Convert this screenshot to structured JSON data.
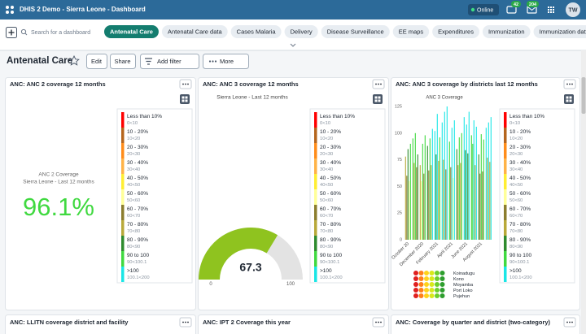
{
  "header": {
    "title": "DHIS 2 Demo - Sierra Leone - Dashboard",
    "status": "Online",
    "message_count": 42,
    "interpretation_count": 204,
    "avatar": "TW"
  },
  "toolbar": {
    "search_placeholder": "Search for a dashboard",
    "dashboards": [
      "Antenatal Care",
      "Antenatal Care data",
      "Cases Malaria",
      "Delivery",
      "Disease Surveillance",
      "EE maps",
      "Expenditures",
      "Immunization",
      "Immunization data"
    ],
    "active_dashboard": 0
  },
  "dashboard": {
    "title": "Antenatal Care",
    "actions": [
      "Edit",
      "Share",
      "Add filter",
      "More"
    ]
  },
  "legend": [
    {
      "label": "Less than 10%",
      "range": "0<10",
      "from": 0,
      "to": 10,
      "color": "#ff0000"
    },
    {
      "label": "10 - 20%",
      "range": "10<20",
      "from": 10,
      "to": 20,
      "color": "#b5651d"
    },
    {
      "label": "20 - 30%",
      "range": "20<30",
      "from": 20,
      "to": 30,
      "color": "#ff8c1a"
    },
    {
      "label": "30 - 40%",
      "range": "30<40",
      "from": 30,
      "to": 40,
      "color": "#ffb347"
    },
    {
      "label": "40 - 50%",
      "range": "40<50",
      "from": 40,
      "to": 50,
      "color": "#ffee33"
    },
    {
      "label": "50 - 60%",
      "range": "50<60",
      "from": 50,
      "to": 60,
      "color": "#ffff99"
    },
    {
      "label": "60 - 70%",
      "range": "60<70",
      "from": 60,
      "to": 70,
      "color": "#8b7d2e"
    },
    {
      "label": "70 - 80%",
      "range": "70<80",
      "from": 70,
      "to": 80,
      "color": "#b8a93a"
    },
    {
      "label": "80 - 90%",
      "range": "80<90",
      "from": 80,
      "to": 90,
      "color": "#2e8b2e"
    },
    {
      "label": "90 to 100",
      "range": "90<100.1",
      "from": 90,
      "to": 100.1,
      "color": "#40d940"
    },
    {
      "label": ">100",
      "range": "100.1<200",
      "from": 100.1,
      "to": 200,
      "color": "#1ae6e6"
    }
  ],
  "items": [
    {
      "title": "ANC: ANC 2 coverage 12 months",
      "type": "single_value",
      "subtitle": [
        "ANC 2 Coverage",
        "Sierra Leone - Last 12 months"
      ],
      "value": 96.1,
      "value_label": "96.1%"
    },
    {
      "title": "ANC: ANC 3 coverage 12 months",
      "type": "gauge",
      "subtitle": "Sierra Leone - Last 12 months",
      "value": 67.3,
      "min": 0,
      "max": 100,
      "color": "#8fc31f"
    },
    {
      "title": "ANC: ANC 3 coverage by districts last 12 months",
      "type": "chart",
      "chart_data": {
        "type": "bar",
        "title": "ANC 3 Coverage",
        "categories": [
          "October 20",
          null,
          "December 2020",
          null,
          "February 2021",
          null,
          "April 2021",
          null,
          "June 2021",
          null,
          "August 2021",
          null
        ],
        "series": [
          {
            "name": "Koinadugu",
            "values": [
              78,
              95,
              70,
              88,
              102,
              110,
              92,
              85,
              115,
              98,
              80,
              105
            ]
          },
          {
            "name": "Kono",
            "values": [
              60,
              72,
              55,
              65,
              80,
              75,
              68,
              70,
              84,
              90,
              62,
              77
            ]
          },
          {
            "name": "Moyamba",
            "values": [
              85,
              100,
              90,
              95,
              118,
              120,
              105,
              96,
              108,
              112,
              99,
              110
            ]
          },
          {
            "name": "Port Loko",
            "values": [
              55,
              68,
              62,
              70,
              74,
              66,
              58,
              72,
              81,
              70,
              64,
              73
            ]
          },
          {
            "name": "Pujehun",
            "values": [
              90,
              80,
              98,
              104,
              96,
              125,
              112,
              100,
              120,
              106,
              94,
              115
            ]
          }
        ],
        "ylim": [
          0,
          125
        ],
        "yticks": [
          0,
          25,
          50,
          75,
          100,
          125
        ],
        "grid": false,
        "color_by": "legend",
        "legend_position": "bottom"
      }
    }
  ],
  "more_items": [
    "ANC: LLITN coverage district and facility",
    "ANC: IPT 2 Coverage this year",
    "ANC: Coverage by quarter and district (two-category)"
  ]
}
